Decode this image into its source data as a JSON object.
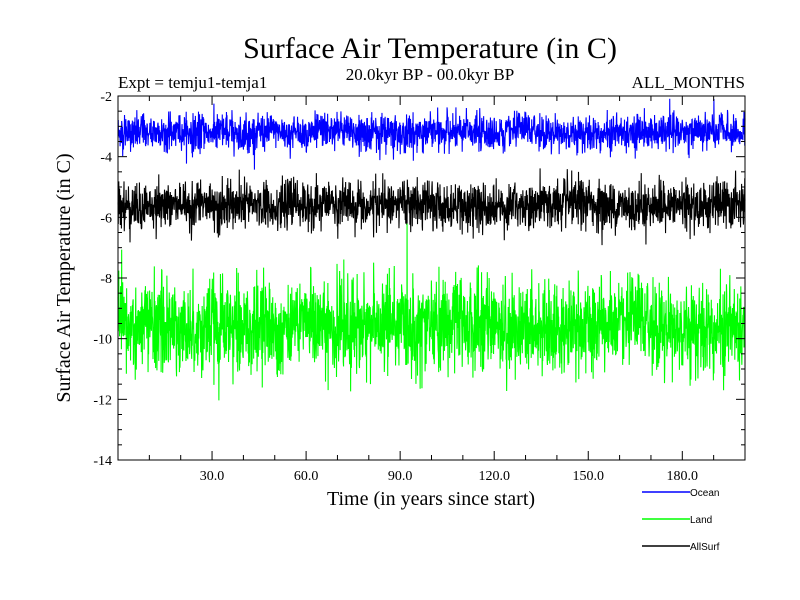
{
  "chart_data": {
    "type": "line",
    "title": "Surface Air Temperature (in C)",
    "subtitle": "20.0kyr BP - 00.0kyr BP",
    "left_annotation": "Expt = temju1-temja1",
    "right_annotation": "ALL_MONTHS",
    "xlabel": "Time (in years since start)",
    "ylabel": "Surface Air Temperature (in C)",
    "xlim": [
      0,
      200
    ],
    "ylim": [
      -14,
      -2
    ],
    "x_ticks": [
      30,
      60,
      90,
      120,
      150,
      180
    ],
    "x_tick_labels": [
      "30.0",
      "60.0",
      "90.0",
      "120.0",
      "150.0",
      "180.0"
    ],
    "y_ticks": [
      -2,
      -4,
      -6,
      -8,
      -10,
      -12,
      -14
    ],
    "y_tick_labels": [
      "-2",
      "-4",
      "-6",
      "-8",
      "-10",
      "-12",
      "-14"
    ],
    "series": [
      {
        "name": "Ocean",
        "color": "#0000ff",
        "mean": -3.2,
        "std": 0.35,
        "n_points": 2400
      },
      {
        "name": "Land",
        "color": "#00ff00",
        "mean": -9.6,
        "std": 0.9,
        "n_points": 2400
      },
      {
        "name": "AllSurf",
        "color": "#000000",
        "mean": -5.6,
        "std": 0.45,
        "n_points": 2400
      }
    ]
  }
}
